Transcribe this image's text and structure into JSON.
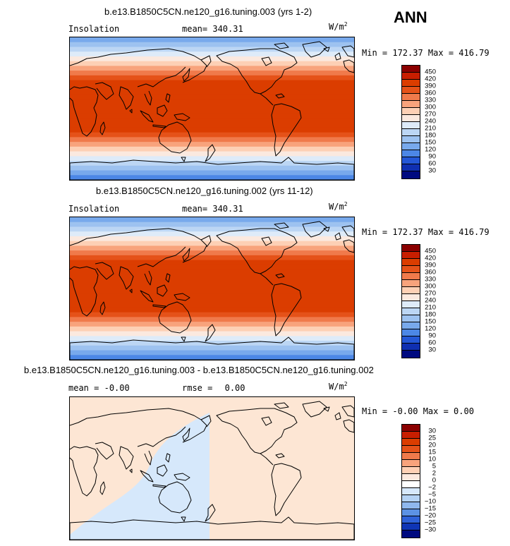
{
  "season": "ANN",
  "panels": [
    {
      "title": "b.e13.B1850C5CN.ne120_g16.tuning.003 (yrs 1-2)",
      "left_label": "Insolation",
      "mean_label": "mean=",
      "mean_value": "340.31",
      "units": "W/m",
      "units_sup": "2",
      "minmax": "Min = 172.37 Max = 416.79",
      "colorbar_levels": [
        "450",
        "420",
        "390",
        "360",
        "330",
        "300",
        "270",
        "240",
        "210",
        "180",
        "150",
        "120",
        "90",
        "60",
        "30"
      ]
    },
    {
      "title": "b.e13.B1850C5CN.ne120_g16.tuning.002 (yrs 11-12)",
      "left_label": "Insolation",
      "mean_label": "mean=",
      "mean_value": "340.31",
      "units": "W/m",
      "units_sup": "2",
      "minmax": "Min = 172.37 Max = 416.79",
      "colorbar_levels": [
        "450",
        "420",
        "390",
        "360",
        "330",
        "300",
        "270",
        "240",
        "210",
        "180",
        "150",
        "120",
        "90",
        "60",
        "30"
      ]
    },
    {
      "title": "b.e13.B1850C5CN.ne120_g16.tuning.003 - b.e13.B1850C5CN.ne120_g16.tuning.002",
      "mean_label": "mean =",
      "mean_value": "-0.00",
      "rmse_label": "rmse =",
      "rmse_value": "0.00",
      "units": "W/m",
      "units_sup": "2",
      "minmax": "Min =  -0.00 Max =   0.00",
      "colorbar_levels": [
        "30",
        "25",
        "20",
        "15",
        "10",
        "5",
        "2",
        "0",
        "−2",
        "−5",
        "−10",
        "−15",
        "−20",
        "−25",
        "−30"
      ]
    }
  ],
  "colors": {
    "main_scale": [
      "#8b0000",
      "#c81e00",
      "#db3d00",
      "#e55219",
      "#f07a4b",
      "#f8a37c",
      "#fdd0b5",
      "#fbe9df",
      "#deebf9",
      "#bcd6f4",
      "#9dc2f0",
      "#78a9ec",
      "#4c87e6",
      "#2457d6",
      "#0f2fb1",
      "#000a80"
    ],
    "diff_scale": [
      "#8b0000",
      "#c81e00",
      "#db3d00",
      "#e55219",
      "#f07a4b",
      "#f8a37c",
      "#fdd0b5",
      "#fbe9df",
      "#ffffff",
      "#d6e8fb",
      "#b4d2f4",
      "#8fb8ee",
      "#5c92e4",
      "#2f62d8",
      "#0f35b5",
      "#000a80"
    ],
    "diff_positive": "#fde6d4",
    "diff_negative": "#d6e8fb"
  }
}
